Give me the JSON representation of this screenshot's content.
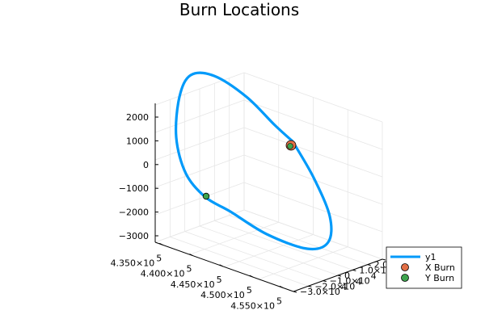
{
  "chart_data": {
    "type": "line3d",
    "title": "Burn Locations",
    "axes": {
      "x": {
        "label": "",
        "ticks": [
          {
            "mant": "4.350×10",
            "exp": "5"
          },
          {
            "mant": "4.400×10",
            "exp": "5"
          },
          {
            "mant": "4.450×10",
            "exp": "5"
          },
          {
            "mant": "4.500×10",
            "exp": "5"
          },
          {
            "mant": "4.550×10",
            "exp": "5"
          }
        ]
      },
      "y": {
        "label": "",
        "ticks": [
          {
            "mant": "−3.0×10",
            "exp": "4"
          },
          {
            "mant": "−2.0×10",
            "exp": "4"
          },
          {
            "mant": "−1.0×10",
            "exp": "4"
          },
          {
            "mant": "0",
            "exp": ""
          },
          {
            "mant": "1.0×10",
            "exp": "4"
          },
          {
            "mant": "2.0×10",
            "exp": "4"
          },
          {
            "mant": "3.0×10",
            "exp": "4"
          }
        ]
      },
      "z": {
        "label": "",
        "ticks": [
          "2000",
          "1000",
          "0",
          "−1000",
          "−2000",
          "−3000"
        ]
      }
    },
    "grid": true,
    "legend": {
      "position": "bottom-right",
      "entries": [
        {
          "label": "y1",
          "marker": "line",
          "color": "#009AFA"
        },
        {
          "label": "X Burn",
          "marker": "circle",
          "color": "#E26F46"
        },
        {
          "label": "Y Burn",
          "marker": "circle",
          "color": "#3EA44E"
        }
      ]
    },
    "series": [
      {
        "name": "y1",
        "kind": "line",
        "color": "#009AFA",
        "points": [
          [
            455000,
            -30000,
            1250
          ],
          [
            455200,
            -25000,
            1700
          ],
          [
            454800,
            -10000,
            2100
          ],
          [
            450000,
            10000,
            2200
          ],
          [
            445000,
            25000,
            1800
          ],
          [
            440000,
            30000,
            600
          ],
          [
            437000,
            20000,
            -1000
          ],
          [
            440000,
            0,
            -2000
          ],
          [
            447000,
            -20000,
            -2600
          ],
          [
            452000,
            -30000,
            -1800
          ]
        ]
      },
      {
        "name": "X Burn",
        "kind": "scatter",
        "color": "#E26F46",
        "points": [
          [
            455000,
            -30000,
            1250
          ]
        ]
      },
      {
        "name": "Y Burn",
        "kind": "scatter",
        "color": "#3EA44E",
        "points": [
          [
            440000,
            0,
            -2000
          ]
        ]
      }
    ]
  }
}
